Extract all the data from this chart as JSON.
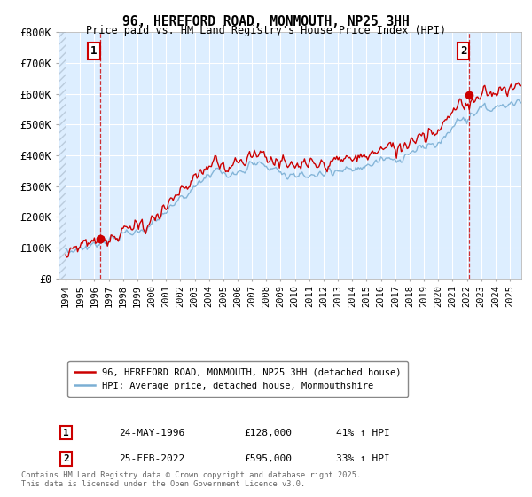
{
  "title": "96, HEREFORD ROAD, MONMOUTH, NP25 3HH",
  "subtitle": "Price paid vs. HM Land Registry's House Price Index (HPI)",
  "legend_line1": "96, HEREFORD ROAD, MONMOUTH, NP25 3HH (detached house)",
  "legend_line2": "HPI: Average price, detached house, Monmouthshire",
  "annotation1_label": "1",
  "annotation1_date": "24-MAY-1996",
  "annotation1_price": "£128,000",
  "annotation1_hpi": "41% ↑ HPI",
  "annotation1_year": 1996.38,
  "annotation1_value": 128000,
  "annotation2_label": "2",
  "annotation2_date": "25-FEB-2022",
  "annotation2_price": "£595,000",
  "annotation2_hpi": "33% ↑ HPI",
  "annotation2_year": 2022.15,
  "annotation2_value": 595000,
  "ylim": [
    0,
    800000
  ],
  "xlim_start": 1993.5,
  "xlim_end": 2025.8,
  "line_color_property": "#cc0000",
  "line_color_hpi": "#7bafd4",
  "vline_color": "#cc0000",
  "plot_bg_color": "#ddeeff",
  "background_color": "#ffffff",
  "grid_color": "#ffffff",
  "hatch_color": "#bbccdd",
  "footnote": "Contains HM Land Registry data © Crown copyright and database right 2025.\nThis data is licensed under the Open Government Licence v3.0.",
  "yticks": [
    0,
    100000,
    200000,
    300000,
    400000,
    500000,
    600000,
    700000,
    800000
  ],
  "ytick_labels": [
    "£0",
    "£100K",
    "£200K",
    "£300K",
    "£400K",
    "£500K",
    "£600K",
    "£700K",
    "£800K"
  ]
}
